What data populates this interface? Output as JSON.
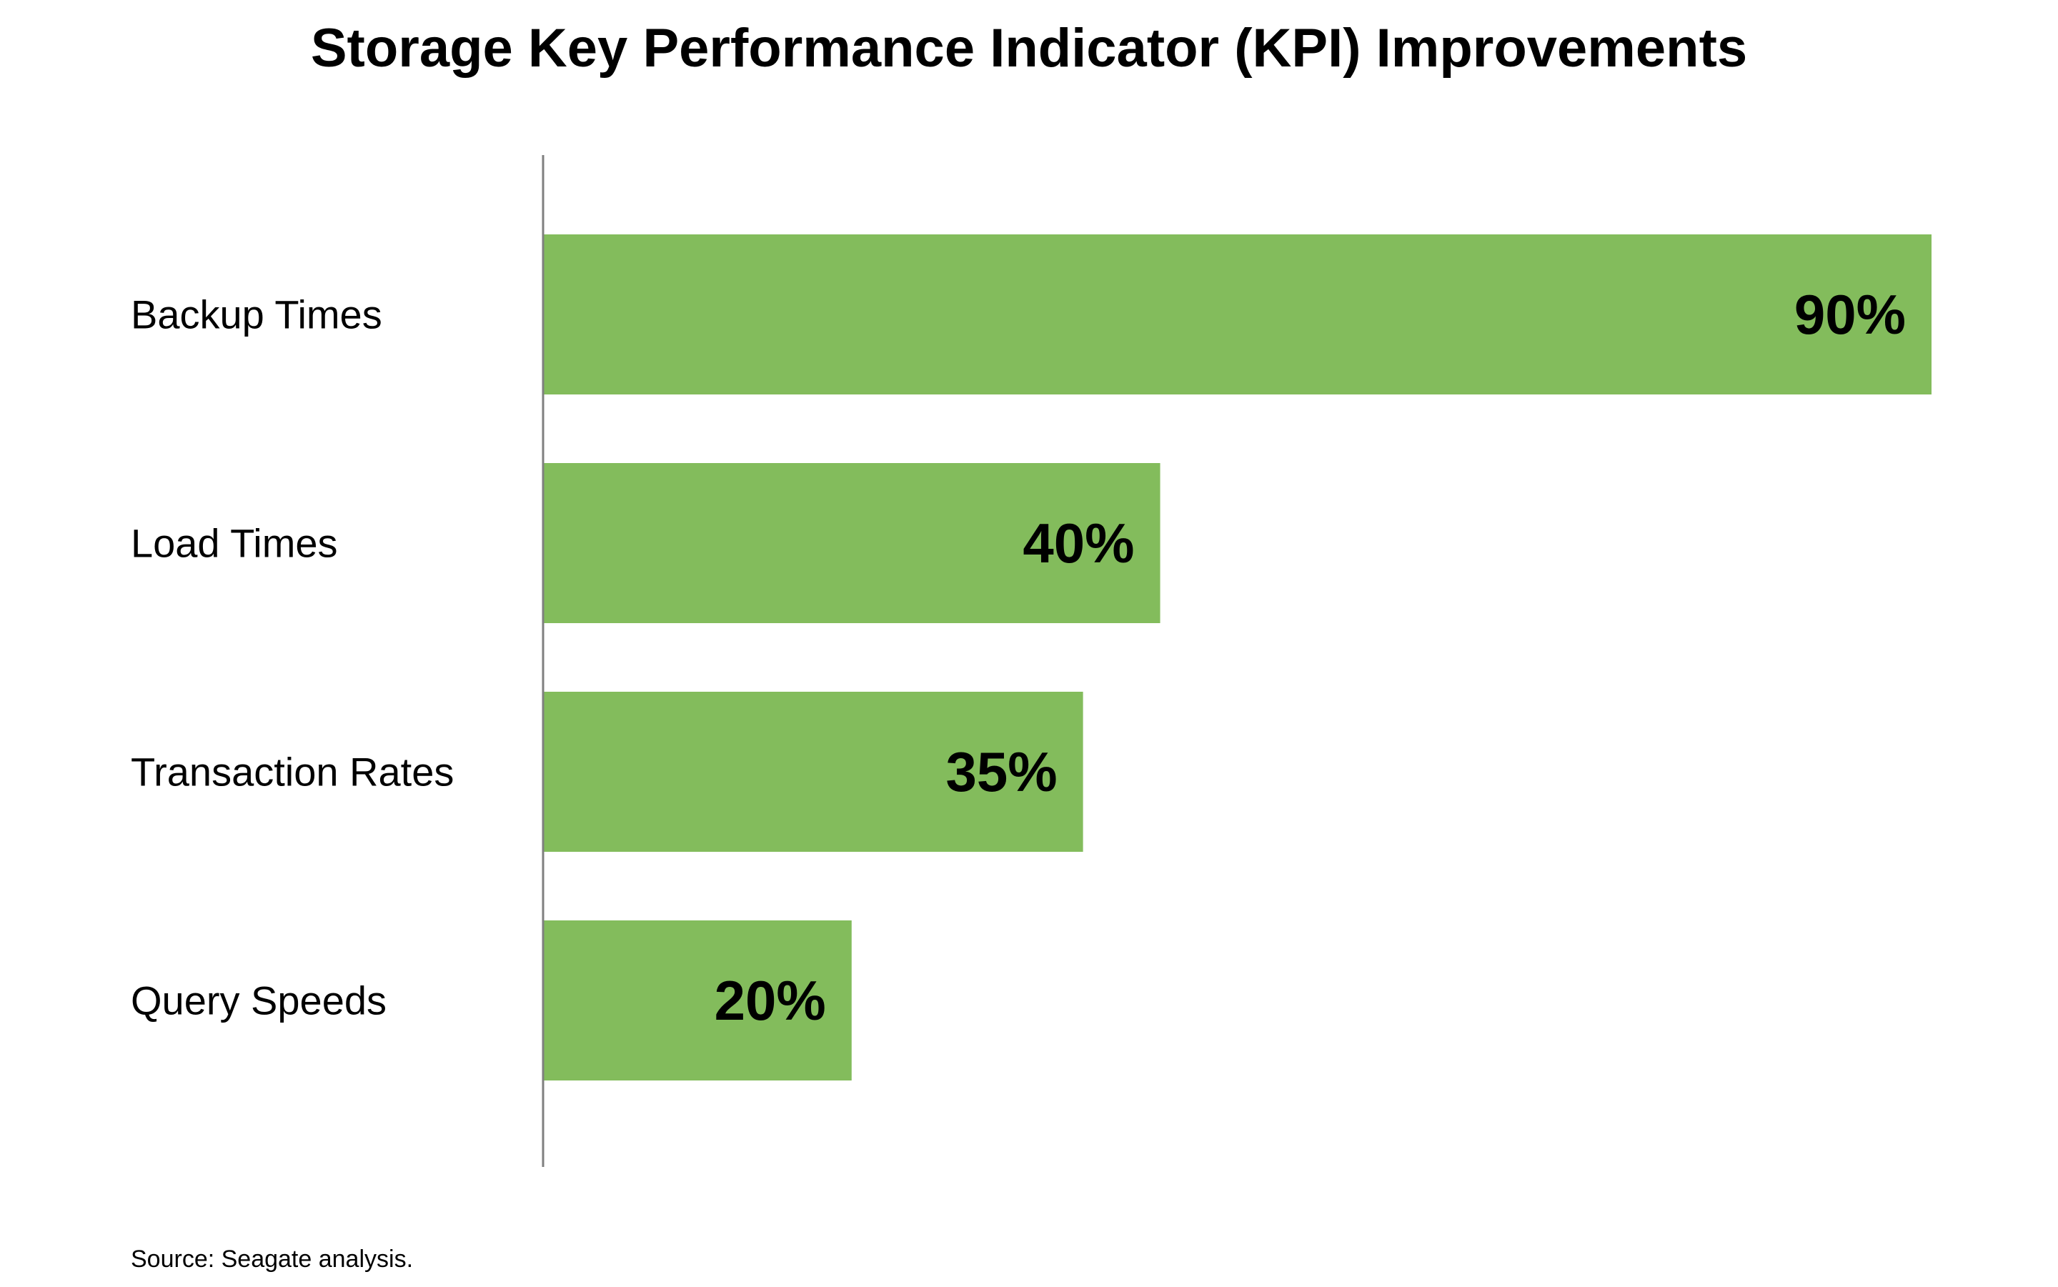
{
  "chart_data": {
    "type": "bar",
    "orientation": "horizontal",
    "title": "Storage Key Performance Indicator (KPI) Improvements",
    "categories": [
      "Backup Times",
      "Load Times",
      "Transaction Rates",
      "Query Speeds"
    ],
    "values": [
      90,
      40,
      35,
      20
    ],
    "value_labels": [
      "90%",
      "40%",
      "35%",
      "20%"
    ],
    "xlabel": "",
    "ylabel": "",
    "xlim": [
      0,
      90
    ],
    "grid": false,
    "legend": "none",
    "bar_color": "#83bc5c",
    "axis_color": "#7f7f7f",
    "source": "Source: Seagate analysis."
  }
}
